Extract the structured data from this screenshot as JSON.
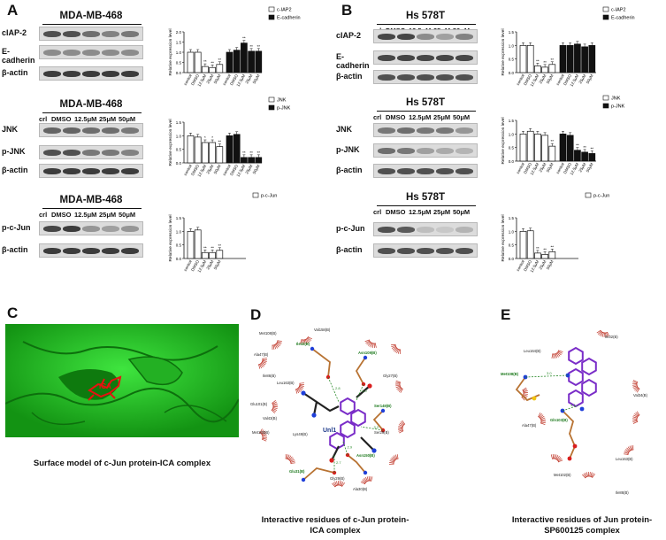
{
  "panels": {
    "A": "A",
    "B": "B",
    "C": "C",
    "D": "D",
    "E": "E"
  },
  "lanes": [
    "crl",
    "DMSO",
    "12.5μM",
    "25μM",
    "50μM"
  ],
  "blots": {
    "A1": {
      "title": "MDA-MB-468",
      "rows": [
        "cIAP-2",
        "E-cadherin",
        "β-actin"
      ]
    },
    "A2": {
      "title": "MDA-MB-468",
      "rows": [
        "JNK",
        "p-JNK",
        "β-actin"
      ]
    },
    "A3": {
      "title": "MDA-MB-468",
      "rows": [
        "p-c-Jun",
        "β-actin"
      ]
    },
    "B1": {
      "title": "Hs 578T",
      "rows": [
        "cIAP-2",
        "E-cadherin",
        "β-actin"
      ]
    },
    "B2": {
      "title": "Hs 578T",
      "rows": [
        "JNK",
        "p-JNK",
        "β-actin"
      ]
    },
    "B3": {
      "title": "Hs 578T",
      "rows": [
        "p-c-Jun",
        "β-actin"
      ]
    }
  },
  "chart_data": [
    {
      "id": "A1",
      "type": "bar",
      "ylabel": "Relative expression level",
      "ylim": [
        0,
        2.0
      ],
      "yticks": [
        0,
        0.5,
        1.0,
        1.5,
        2.0
      ],
      "categories": [
        "control",
        "DMSO",
        "12.5μM",
        "25μM",
        "50μM"
      ],
      "series": [
        {
          "name": "c-IAP2",
          "values": [
            1.0,
            1.0,
            0.3,
            0.25,
            0.4
          ],
          "sig": [
            "",
            "",
            "**",
            "**",
            "**"
          ],
          "fill": "#ffffff"
        },
        {
          "name": "E-cadherin",
          "values": [
            1.0,
            1.1,
            1.45,
            1.05,
            1.05
          ],
          "sig": [
            "",
            "",
            "**",
            "**",
            "**"
          ],
          "fill": "#111111"
        }
      ]
    },
    {
      "id": "A2",
      "type": "bar",
      "ylabel": "Relative expression level",
      "ylim": [
        0,
        1.5
      ],
      "yticks": [
        0,
        0.5,
        1.0,
        1.5
      ],
      "categories": [
        "control",
        "DMSO",
        "12.5μM",
        "25μM",
        "50μM"
      ],
      "series": [
        {
          "name": "JNK",
          "values": [
            1.0,
            0.95,
            0.75,
            0.75,
            0.6
          ],
          "sig": [
            "",
            "",
            "*",
            "*",
            "**"
          ],
          "fill": "#ffffff"
        },
        {
          "name": "p-JNK",
          "values": [
            1.0,
            1.05,
            0.2,
            0.2,
            0.2
          ],
          "sig": [
            "",
            "",
            "**",
            "**",
            "**"
          ],
          "fill": "#111111"
        }
      ]
    },
    {
      "id": "A3",
      "type": "bar",
      "ylabel": "Relative expression level",
      "ylim": [
        0,
        1.5
      ],
      "yticks": [
        0,
        0.5,
        1.0,
        1.5
      ],
      "categories": [
        "control",
        "DMSO",
        "12.5μM",
        "25μM",
        "50μM"
      ],
      "series": [
        {
          "name": "p-c-Jun",
          "values": [
            1.0,
            1.05,
            0.22,
            0.22,
            0.3
          ],
          "sig": [
            "",
            "",
            "**",
            "**",
            "**"
          ],
          "fill": "#ffffff"
        }
      ]
    },
    {
      "id": "B1",
      "type": "bar",
      "ylabel": "Relative expression level",
      "ylim": [
        0,
        1.5
      ],
      "yticks": [
        0,
        0.5,
        1.0,
        1.5
      ],
      "categories": [
        "control",
        "DMSO",
        "12.5μM",
        "25μM",
        "50μM"
      ],
      "series": [
        {
          "name": "c-IAP2",
          "values": [
            1.0,
            1.0,
            0.25,
            0.2,
            0.3
          ],
          "sig": [
            "",
            "",
            "**",
            "**",
            "**"
          ],
          "fill": "#ffffff"
        },
        {
          "name": "E-cadherin",
          "values": [
            1.0,
            1.0,
            1.05,
            0.95,
            1.0
          ],
          "sig": [
            "",
            "",
            "",
            "",
            ""
          ],
          "fill": "#111111"
        }
      ]
    },
    {
      "id": "B2",
      "type": "bar",
      "ylabel": "Relative expression level",
      "ylim": [
        0,
        1.5
      ],
      "yticks": [
        0,
        0.5,
        1.0,
        1.5
      ],
      "categories": [
        "control",
        "DMSO",
        "12.5μM",
        "25μM",
        "50μM"
      ],
      "series": [
        {
          "name": "JNK",
          "values": [
            1.0,
            1.1,
            1.0,
            0.95,
            0.55
          ],
          "sig": [
            "",
            "",
            "",
            "",
            "**"
          ],
          "fill": "#ffffff"
        },
        {
          "name": "p-JNK",
          "values": [
            1.0,
            0.95,
            0.4,
            0.33,
            0.28
          ],
          "sig": [
            "",
            "",
            "**",
            "**",
            "**"
          ],
          "fill": "#111111"
        }
      ]
    },
    {
      "id": "B3",
      "type": "bar",
      "ylabel": "Relative expression level",
      "ylim": [
        0,
        1.5
      ],
      "yticks": [
        0,
        0.5,
        1.0,
        1.5
      ],
      "categories": [
        "control",
        "DMSO",
        "12.5μM",
        "25μM",
        "50μM"
      ],
      "series": [
        {
          "name": "p-c-Jun",
          "values": [
            1.0,
            1.02,
            0.2,
            0.15,
            0.25
          ],
          "sig": [
            "",
            "",
            "**",
            "**",
            "**"
          ],
          "fill": "#ffffff"
        }
      ]
    }
  ],
  "surface": {
    "label": "ICA"
  },
  "diagramD": {
    "ligand": "Unl1",
    "residues": [
      "Met108(B)",
      "Val158(B)",
      "Ile32(B)",
      "Ala47(B)",
      "Asn109(B)",
      "Ile86(B)",
      "Leu163(B)",
      "Gly27(B)",
      "Glu101(B)",
      "Val43(B)",
      "Ser149(B)",
      "Met103(B)",
      "Lys49(B)",
      "Ser29(B)",
      "Asn150(B)",
      "Gly29(B)",
      "Glu31(B)",
      "Ala30(B)"
    ],
    "hbonds": [
      "2.8",
      "3.0",
      "3.2",
      "2.9",
      "2.7"
    ]
  },
  "diagramE": {
    "residues": [
      "Ile32(B)",
      "Leu164(B)",
      "Met108(B)",
      "Val34(B)",
      "Ala47(B)",
      "Gln103(B)",
      "Met102(B)",
      "Leu163(B)",
      "Ile86(B)"
    ],
    "hbonds": [
      "3.0",
      "3.1"
    ]
  },
  "captions": {
    "C": "Surface model of c-Jun protein-ICA complex",
    "D": "Interactive residues of c-Jun protein-ICA complex",
    "E": "Interactive residues of Jun protein-SP600125 complex"
  },
  "colors": {
    "surface": "#1fbf1f",
    "ligand": "#e81010",
    "bond_brown": "#b87333",
    "ring": "#7a2dc8"
  }
}
